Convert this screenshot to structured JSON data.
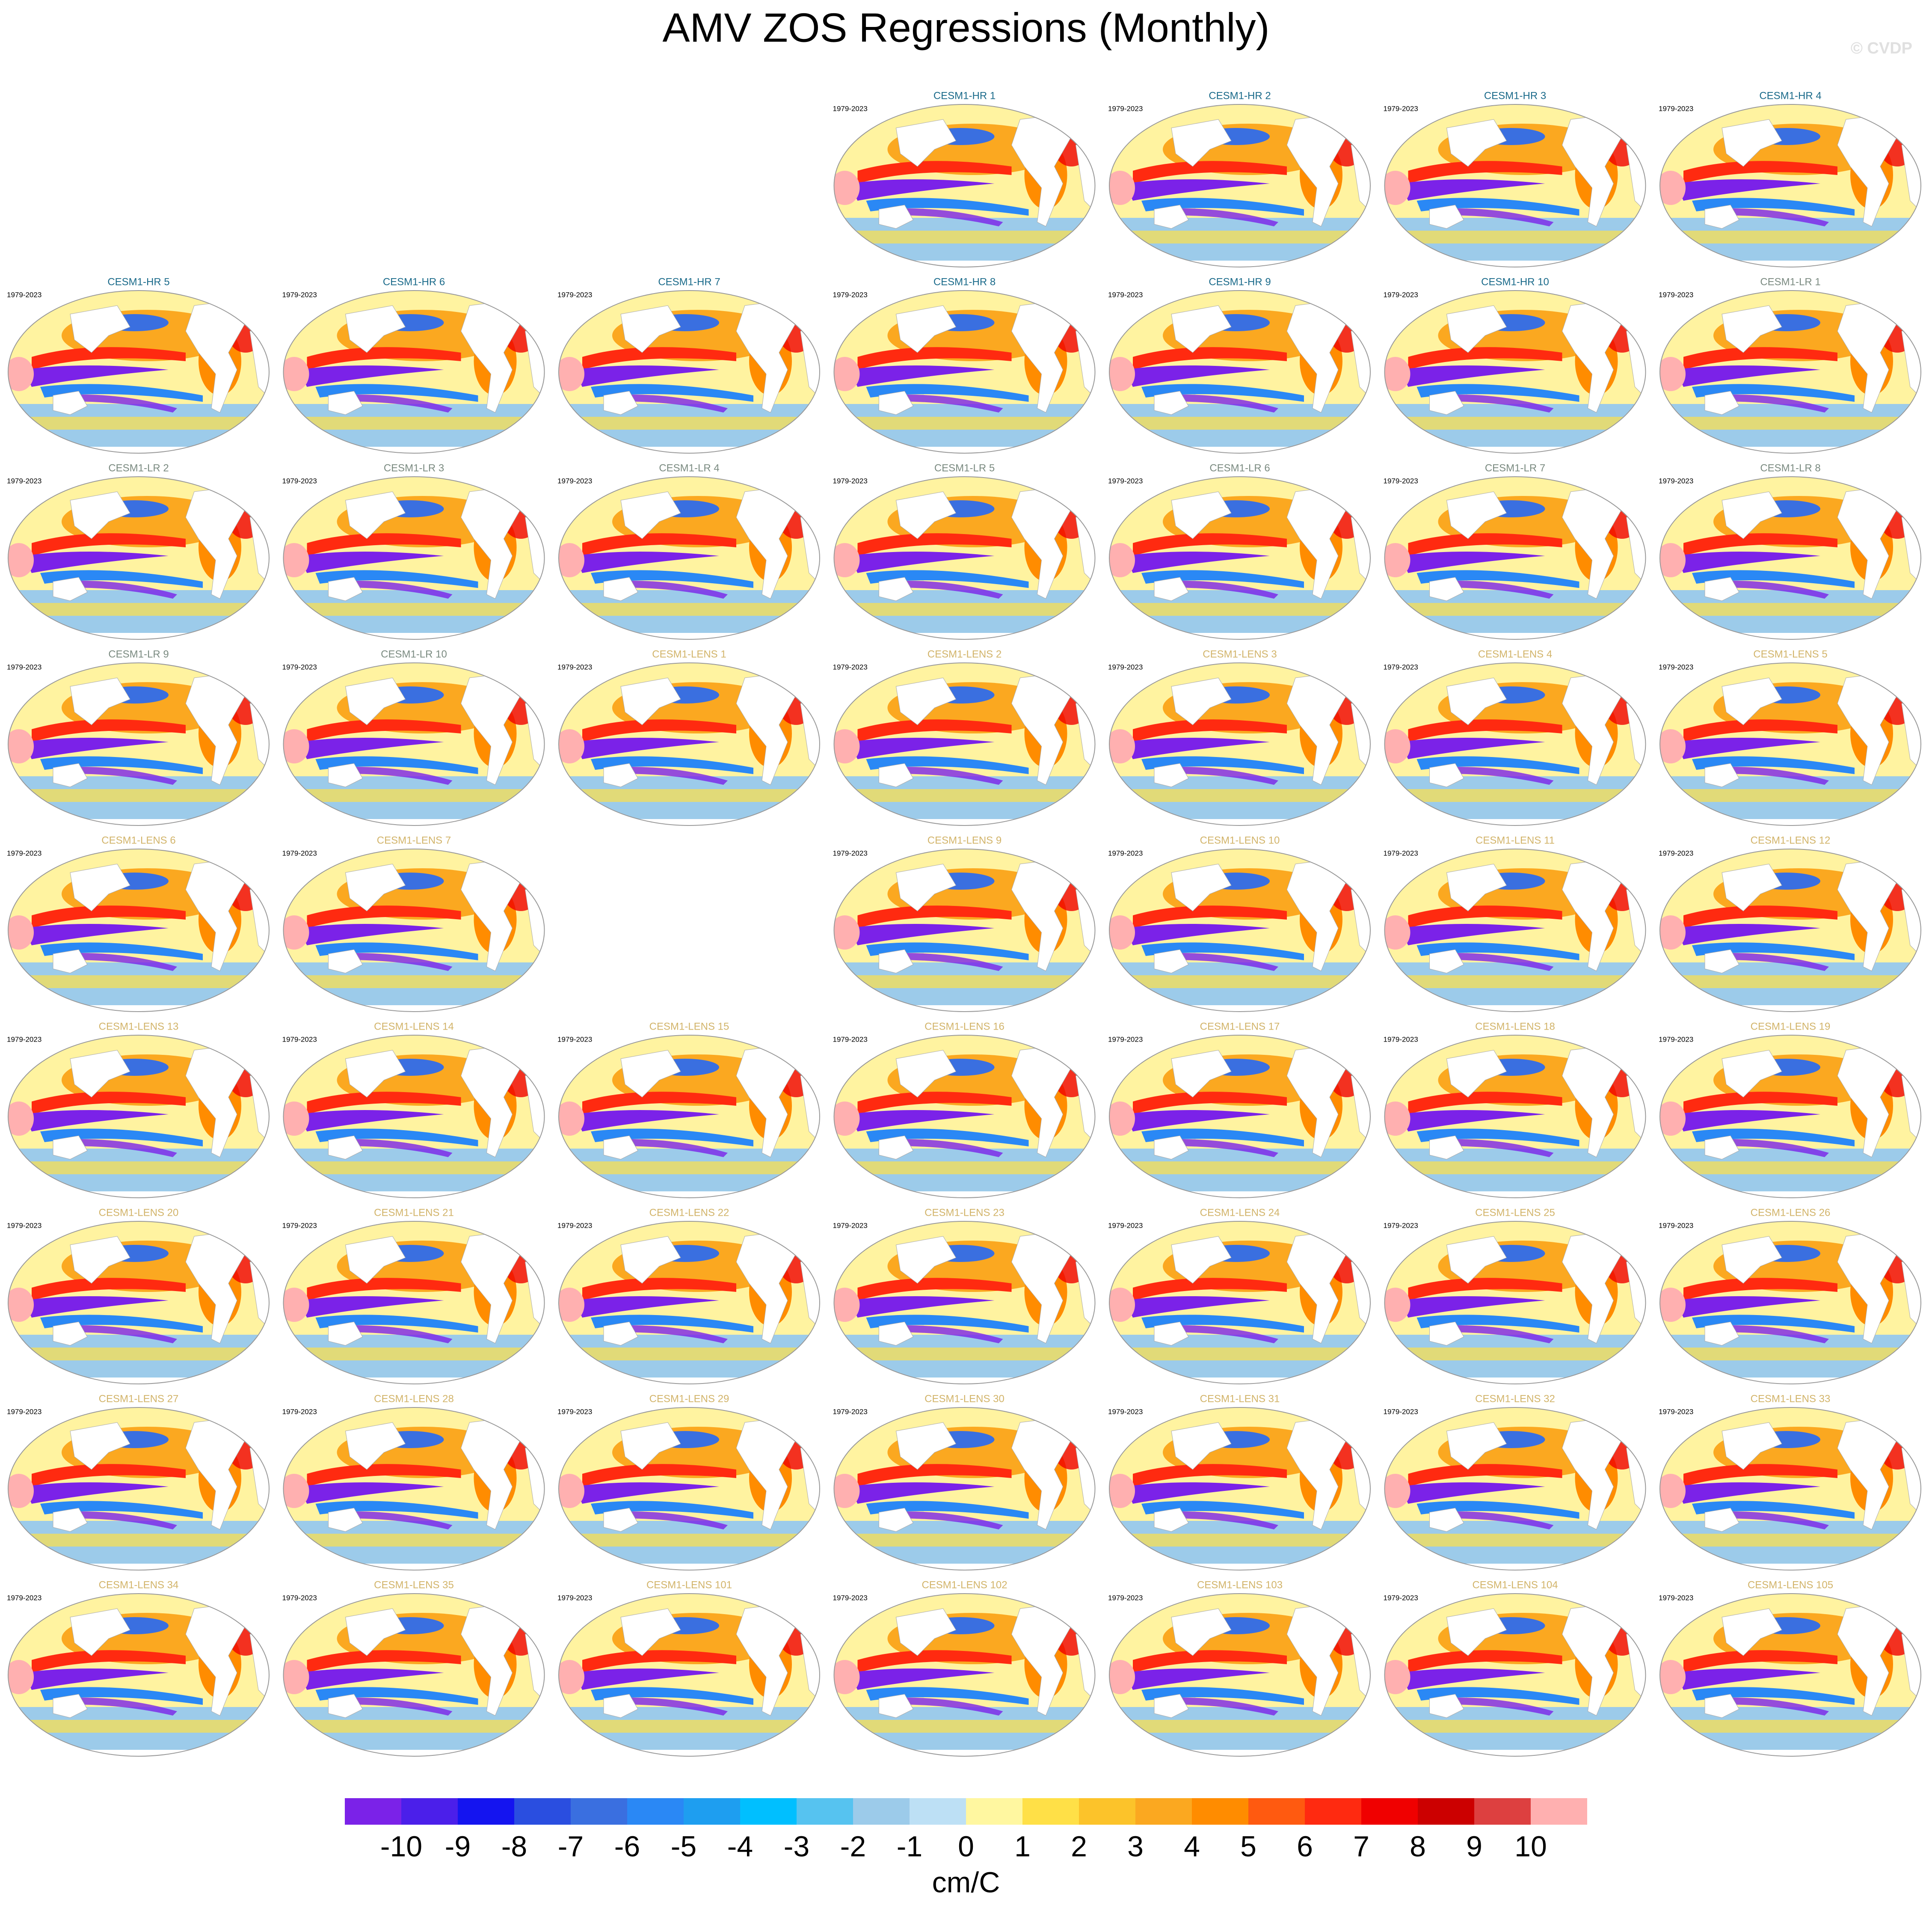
{
  "title": "AMV ZOS Regressions (Monthly)",
  "copyright": "© CVDP",
  "panel_rows": [
    [
      null,
      null,
      null,
      {
        "period": "1979-2023",
        "name": "CESM1-HR 1",
        "color": "#1a6a8a"
      },
      {
        "period": "1979-2023",
        "name": "CESM1-HR 2",
        "color": "#1a6a8a"
      },
      {
        "period": "1979-2023",
        "name": "CESM1-HR 3",
        "color": "#1a6a8a"
      },
      {
        "period": "1979-2023",
        "name": "CESM1-HR 4",
        "color": "#1a6a8a"
      }
    ],
    [
      {
        "period": "1979-2023",
        "name": "CESM1-HR 5",
        "color": "#1a6a8a"
      },
      {
        "period": "1979-2023",
        "name": "CESM1-HR 6",
        "color": "#1a6a8a"
      },
      {
        "period": "1979-2023",
        "name": "CESM1-HR 7",
        "color": "#1a6a8a"
      },
      {
        "period": "1979-2023",
        "name": "CESM1-HR 8",
        "color": "#1a6a8a"
      },
      {
        "period": "1979-2023",
        "name": "CESM1-HR 9",
        "color": "#1a6a8a"
      },
      {
        "period": "1979-2023",
        "name": "CESM1-HR 10",
        "color": "#1a6a8a"
      },
      {
        "period": "1979-2023",
        "name": "CESM1-LR 1",
        "color": "#7a8a80"
      }
    ],
    [
      {
        "period": "1979-2023",
        "name": "CESM1-LR 2",
        "color": "#7a8a80"
      },
      {
        "period": "1979-2023",
        "name": "CESM1-LR 3",
        "color": "#7a8a80"
      },
      {
        "period": "1979-2023",
        "name": "CESM1-LR 4",
        "color": "#7a8a80"
      },
      {
        "period": "1979-2023",
        "name": "CESM1-LR 5",
        "color": "#7a8a80"
      },
      {
        "period": "1979-2023",
        "name": "CESM1-LR 6",
        "color": "#7a8a80"
      },
      {
        "period": "1979-2023",
        "name": "CESM1-LR 7",
        "color": "#7a8a80"
      },
      {
        "period": "1979-2023",
        "name": "CESM1-LR 8",
        "color": "#7a8a80"
      }
    ],
    [
      {
        "period": "1979-2023",
        "name": "CESM1-LR 9",
        "color": "#7a8a80"
      },
      {
        "period": "1979-2023",
        "name": "CESM1-LR 10",
        "color": "#7a8a80"
      },
      {
        "period": "1979-2023",
        "name": "CESM1-LENS 1",
        "color": "#d2b46a"
      },
      {
        "period": "1979-2023",
        "name": "CESM1-LENS 2",
        "color": "#d2b46a"
      },
      {
        "period": "1979-2023",
        "name": "CESM1-LENS 3",
        "color": "#d2b46a"
      },
      {
        "period": "1979-2023",
        "name": "CESM1-LENS 4",
        "color": "#d2b46a"
      },
      {
        "period": "1979-2023",
        "name": "CESM1-LENS 5",
        "color": "#d2b46a"
      }
    ],
    [
      {
        "period": "1979-2023",
        "name": "CESM1-LENS 6",
        "color": "#d2b46a"
      },
      {
        "period": "1979-2023",
        "name": "CESM1-LENS 7",
        "color": "#d2b46a"
      },
      null,
      {
        "period": "1979-2023",
        "name": "CESM1-LENS 9",
        "color": "#d2b46a"
      },
      {
        "period": "1979-2023",
        "name": "CESM1-LENS 10",
        "color": "#d2b46a"
      },
      {
        "period": "1979-2023",
        "name": "CESM1-LENS 11",
        "color": "#d2b46a"
      },
      {
        "period": "1979-2023",
        "name": "CESM1-LENS 12",
        "color": "#d2b46a"
      }
    ],
    [
      {
        "period": "1979-2023",
        "name": "CESM1-LENS 13",
        "color": "#d2b46a"
      },
      {
        "period": "1979-2023",
        "name": "CESM1-LENS 14",
        "color": "#d2b46a"
      },
      {
        "period": "1979-2023",
        "name": "CESM1-LENS 15",
        "color": "#d2b46a"
      },
      {
        "period": "1979-2023",
        "name": "CESM1-LENS 16",
        "color": "#d2b46a"
      },
      {
        "period": "1979-2023",
        "name": "CESM1-LENS 17",
        "color": "#d2b46a"
      },
      {
        "period": "1979-2023",
        "name": "CESM1-LENS 18",
        "color": "#d2b46a"
      },
      {
        "period": "1979-2023",
        "name": "CESM1-LENS 19",
        "color": "#d2b46a"
      }
    ],
    [
      {
        "period": "1979-2023",
        "name": "CESM1-LENS 20",
        "color": "#d2b46a"
      },
      {
        "period": "1979-2023",
        "name": "CESM1-LENS 21",
        "color": "#d2b46a"
      },
      {
        "period": "1979-2023",
        "name": "CESM1-LENS 22",
        "color": "#d2b46a"
      },
      {
        "period": "1979-2023",
        "name": "CESM1-LENS 23",
        "color": "#d2b46a"
      },
      {
        "period": "1979-2023",
        "name": "CESM1-LENS 24",
        "color": "#d2b46a"
      },
      {
        "period": "1979-2023",
        "name": "CESM1-LENS 25",
        "color": "#d2b46a"
      },
      {
        "period": "1979-2023",
        "name": "CESM1-LENS 26",
        "color": "#d2b46a"
      }
    ],
    [
      {
        "period": "1979-2023",
        "name": "CESM1-LENS 27",
        "color": "#d2b46a"
      },
      {
        "period": "1979-2023",
        "name": "CESM1-LENS 28",
        "color": "#d2b46a"
      },
      {
        "period": "1979-2023",
        "name": "CESM1-LENS 29",
        "color": "#d2b46a"
      },
      {
        "period": "1979-2023",
        "name": "CESM1-LENS 30",
        "color": "#d2b46a"
      },
      {
        "period": "1979-2023",
        "name": "CESM1-LENS 31",
        "color": "#d2b46a"
      },
      {
        "period": "1979-2023",
        "name": "CESM1-LENS 32",
        "color": "#d2b46a"
      },
      {
        "period": "1979-2023",
        "name": "CESM1-LENS 33",
        "color": "#d2b46a"
      }
    ],
    [
      {
        "period": "1979-2023",
        "name": "CESM1-LENS 34",
        "color": "#d2b46a"
      },
      {
        "period": "1979-2023",
        "name": "CESM1-LENS 35",
        "color": "#d2b46a"
      },
      {
        "period": "1979-2023",
        "name": "CESM1-LENS 101",
        "color": "#d2b46a"
      },
      {
        "period": "1979-2023",
        "name": "CESM1-LENS 102",
        "color": "#d2b46a"
      },
      {
        "period": "1979-2023",
        "name": "CESM1-LENS 103",
        "color": "#d2b46a"
      },
      {
        "period": "1979-2023",
        "name": "CESM1-LENS 104",
        "color": "#d2b46a"
      },
      {
        "period": "1979-2023",
        "name": "CESM1-LENS 105",
        "color": "#d2b46a"
      }
    ]
  ],
  "colorbar": {
    "colors": [
      "#7b22e8",
      "#4b1fea",
      "#1414f0",
      "#2a4ee0",
      "#3a6fe0",
      "#2a88f5",
      "#1e9ef0",
      "#00bfff",
      "#56c3f0",
      "#9ccbea",
      "#bde0f5",
      "#fff7a0",
      "#ffe047",
      "#fcc32a",
      "#fba820",
      "#ff8c00",
      "#ff5a10",
      "#ff2a10",
      "#f00000",
      "#cc0000",
      "#dd4040",
      "#ffb0b0"
    ],
    "ticks": [
      -10,
      -9,
      -8,
      -7,
      -6,
      -5,
      -4,
      -3,
      -2,
      -1,
      0,
      1,
      2,
      3,
      4,
      5,
      6,
      7,
      8,
      9,
      10
    ],
    "label": "cm/C"
  }
}
